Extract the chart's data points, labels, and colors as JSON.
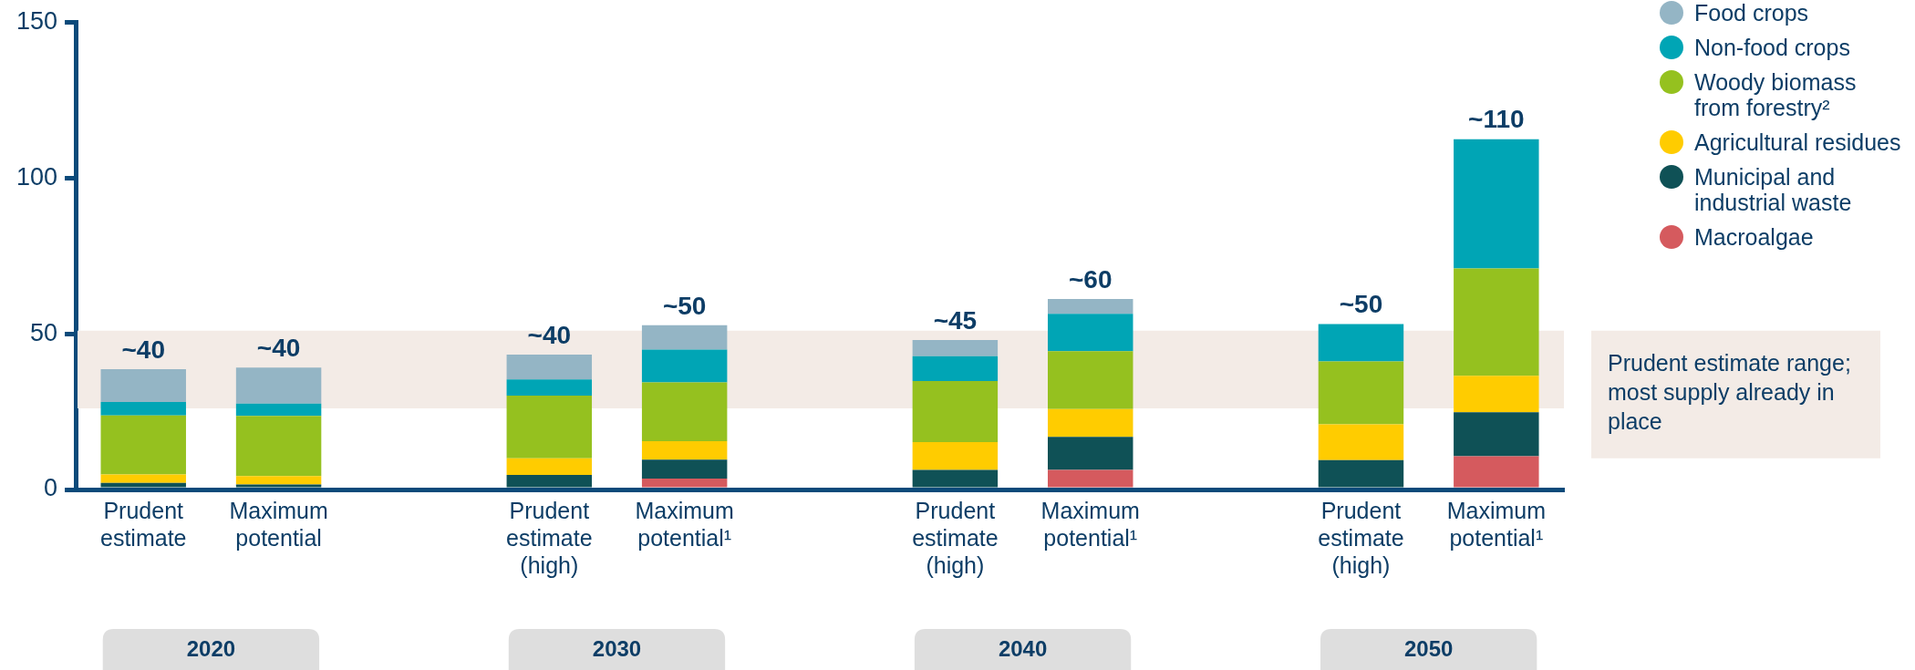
{
  "chart_data": {
    "type": "bar",
    "stacked": true,
    "legend": "top right",
    "categories": [
      "Prudent estimate",
      "Maximum potential",
      null,
      "Prudent estimate (high)",
      "Maximum potential¹",
      null,
      "Prudent estimate (high)",
      "Maximum potential¹",
      null,
      "Prudent estimate (high)",
      "Maximum potential¹"
    ],
    "series": [
      {
        "name": "Macroalgae",
        "color": "#d55a5e",
        "values": [
          0,
          0,
          null,
          0,
          3.5,
          null,
          0,
          6.3,
          null,
          0,
          10.7
        ]
      },
      {
        "name": "Municipal and industrial waste",
        "color": "#0f5156",
        "values": [
          2.1,
          1.6,
          null,
          4.7,
          6.1,
          null,
          6.3,
          10.6,
          null,
          9.4,
          14.1
        ]
      },
      {
        "name": "Agricultural residues",
        "color": "#ffcc00",
        "values": [
          2.7,
          2.7,
          null,
          5.3,
          5.9,
          null,
          8.9,
          8.9,
          null,
          11.5,
          11.7
        ]
      },
      {
        "name": "Woody biomass from forestry²",
        "color": "#95c11f",
        "values": [
          19.0,
          19.3,
          null,
          20.1,
          18.9,
          null,
          19.6,
          18.6,
          null,
          20.2,
          34.4
        ]
      },
      {
        "name": "Non-food crops",
        "color": "#00a5b5",
        "values": [
          4.3,
          4.0,
          null,
          5.2,
          10.5,
          null,
          8.0,
          12.0,
          null,
          12.0,
          41.5
        ]
      },
      {
        "name": "Food crops",
        "color": "#94b5c5",
        "values": [
          10.5,
          11.5,
          null,
          8.0,
          7.8,
          null,
          5.2,
          4.7,
          null,
          0,
          0
        ]
      }
    ],
    "totals": [
      "~40",
      "~40",
      null,
      "~40",
      "~50",
      null,
      "~45",
      "~60",
      null,
      "~50",
      "~110"
    ],
    "ylim": [
      0,
      150
    ],
    "yticks": [
      0,
      50,
      100,
      150
    ],
    "bands": [
      {
        "axis": "y",
        "from": 26,
        "to": 51,
        "label": "Prudent estimate range; most supply already in place",
        "color": "#f3ebe6"
      }
    ],
    "annotations": [
      "2020",
      "2030",
      "2040",
      "2050"
    ]
  }
}
